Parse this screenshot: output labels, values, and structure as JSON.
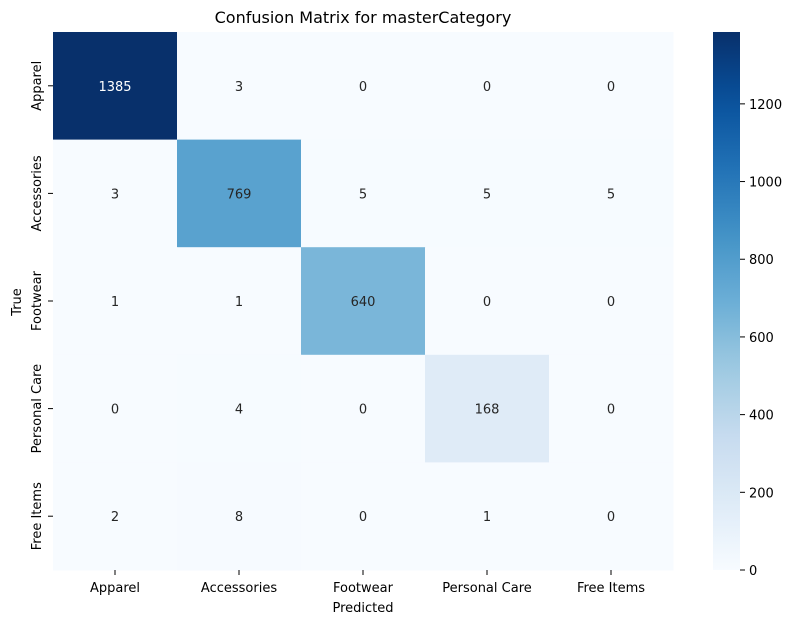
{
  "chart_data": {
    "type": "heatmap",
    "title": "Confusion Matrix for masterCategory",
    "xlabel": "Predicted",
    "ylabel": "True",
    "x_categories": [
      "Apparel",
      "Accessories",
      "Footwear",
      "Personal Care",
      "Free Items"
    ],
    "y_categories": [
      "Apparel",
      "Accessories",
      "Footwear",
      "Personal Care",
      "Free Items"
    ],
    "matrix": [
      [
        1385,
        3,
        0,
        0,
        0
      ],
      [
        3,
        769,
        5,
        5,
        5
      ],
      [
        1,
        1,
        640,
        0,
        0
      ],
      [
        0,
        4,
        0,
        168,
        0
      ],
      [
        2,
        8,
        0,
        1,
        0
      ]
    ],
    "colormap": "Blues",
    "color_range": [
      0,
      1385
    ],
    "colorbar_ticks": [
      0,
      200,
      400,
      600,
      800,
      1000,
      1200
    ]
  }
}
